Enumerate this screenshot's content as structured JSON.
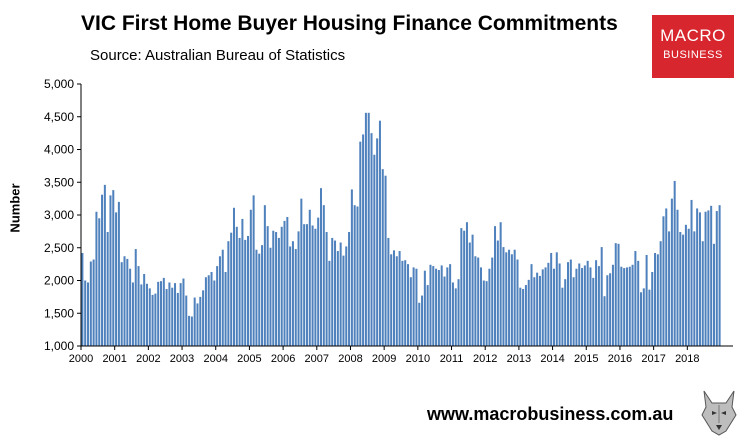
{
  "header": {
    "title": "VIC First Home Buyer Housing Finance Commitments",
    "subtitle": "Source: Australian Bureau of Statistics"
  },
  "logo": {
    "line1": "MACRO",
    "line2": "BUSINESS",
    "color": "#d7262e"
  },
  "footer": {
    "url": "www.macrobusiness.com.au"
  },
  "colors": {
    "bar": "#4f81bd",
    "bar_edge": "#2b5a94"
  },
  "chart_data": {
    "type": "bar",
    "ylabel": "Number",
    "ylim": [
      1000,
      5000
    ],
    "yticks": [
      "1,000",
      "1,500",
      "2,000",
      "2,500",
      "3,000",
      "3,500",
      "4,000",
      "4,500",
      "5,000"
    ],
    "xticks": [
      "2000",
      "2001",
      "2002",
      "2003",
      "2004",
      "2005",
      "2006",
      "2007",
      "2008",
      "2009",
      "2010",
      "2011",
      "2012",
      "2013",
      "2014",
      "2015",
      "2016",
      "2017",
      "2018"
    ],
    "frequency": "monthly",
    "series": [
      {
        "values": [
          2420,
          2000,
          1970,
          2290,
          2320,
          3050,
          2950,
          3310,
          3460,
          2740,
          3300,
          3380,
          3040,
          3200,
          2280,
          2370,
          2330,
          2180,
          1970,
          2480,
          2220,
          1940,
          2100,
          1950,
          1880,
          1780,
          1800,
          1980,
          1990,
          2040,
          1870,
          1970,
          1890,
          1960,
          1810,
          1960,
          2030,
          1770,
          1460,
          1450,
          1740,
          1650,
          1750,
          1850,
          2050,
          2080,
          2130,
          2000,
          2220,
          2370,
          2470,
          2130,
          2600,
          2730,
          3110,
          2820,
          2650,
          2940,
          2620,
          2680,
          3080,
          3300,
          2470,
          2410,
          2540,
          3150,
          2830,
          2500,
          2760,
          2740,
          2650,
          2820,
          2910,
          2970,
          2520,
          2600,
          2480,
          2750,
          3250,
          2860,
          2860,
          3080,
          2840,
          2790,
          2960,
          3410,
          3150,
          2740,
          2300,
          2650,
          2610,
          2450,
          2580,
          2380,
          2520,
          2740,
          3390,
          3150,
          3130,
          4120,
          4230,
          4560,
          4560,
          4250,
          3920,
          4170,
          4440,
          3700,
          3600,
          2650,
          2400,
          2460,
          2370,
          2450,
          2300,
          2310,
          2250,
          2050,
          2200,
          2180,
          1660,
          1770,
          2150,
          1930,
          2240,
          2220,
          2180,
          2160,
          2230,
          2060,
          2200,
          2250,
          1970,
          1880,
          2020,
          2800,
          2760,
          2890,
          2580,
          2700,
          2370,
          2350,
          2200,
          2000,
          1990,
          2180,
          2350,
          2830,
          2610,
          2890,
          2510,
          2430,
          2470,
          2400,
          2470,
          2320,
          1890,
          1870,
          1930,
          2010,
          2250,
          2050,
          2120,
          2070,
          2170,
          2200,
          2270,
          2420,
          2180,
          2430,
          2260,
          1890,
          2020,
          2280,
          2320,
          2050,
          2180,
          2260,
          2190,
          2230,
          2300,
          2200,
          2040,
          2310,
          2220,
          2510,
          1760,
          2080,
          2110,
          2240,
          2570,
          2560,
          2210,
          2190,
          2200,
          2210,
          2240,
          2450,
          2300,
          1820,
          1880,
          2390,
          1860,
          2130,
          2420,
          2400,
          2600,
          2980,
          3100,
          2750,
          3250,
          3520,
          3080,
          2740,
          2700,
          2850,
          2790,
          3230,
          2750,
          3100,
          3040,
          2600,
          3050,
          3070,
          3140,
          2560,
          3060,
          3150
        ]
      }
    ]
  }
}
